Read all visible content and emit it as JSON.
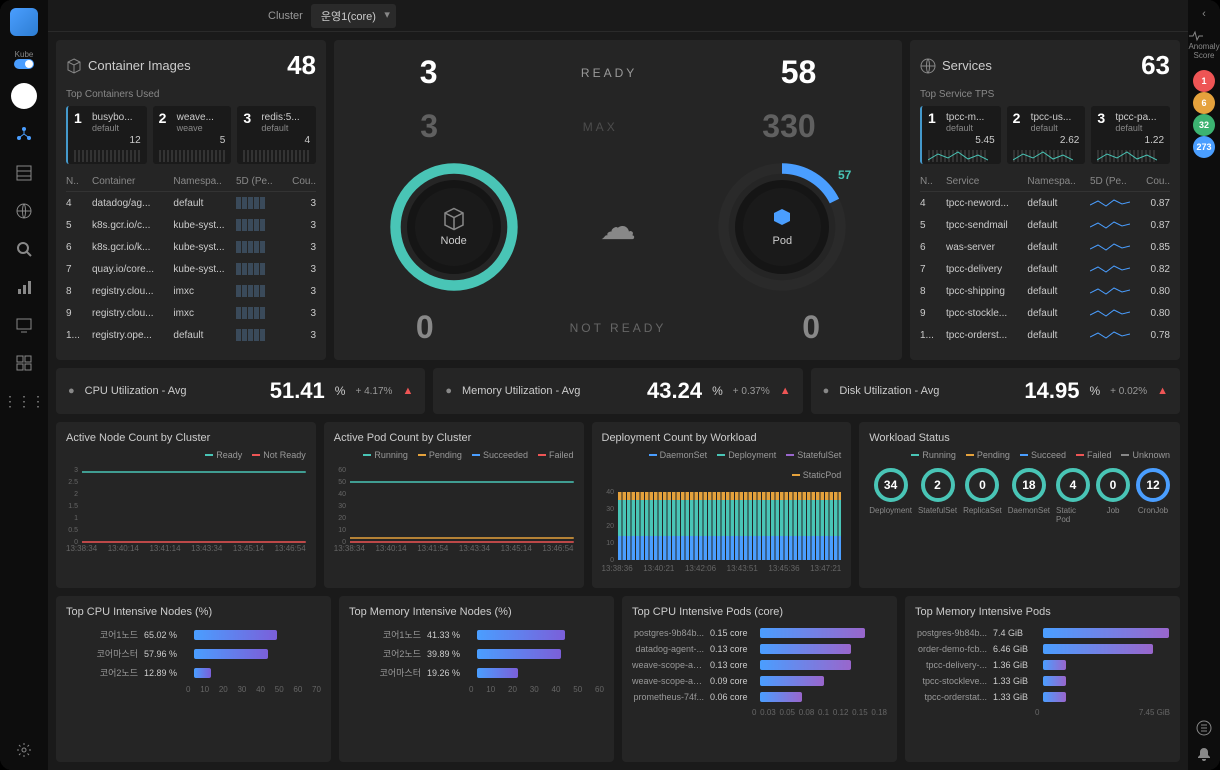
{
  "header": {
    "cluster_label": "Cluster",
    "cluster_value": "운영1(core)"
  },
  "sidebar": {
    "kube_label": "Kube"
  },
  "containers": {
    "title": "Container Images",
    "count": 48,
    "sub": "Top Containers Used",
    "top": [
      {
        "rank": 1,
        "name": "busybo...",
        "ns": "default",
        "val": 12
      },
      {
        "rank": 2,
        "name": "weave...",
        "ns": "weave",
        "val": 5
      },
      {
        "rank": 3,
        "name": "redis:5...",
        "ns": "default",
        "val": 4
      }
    ],
    "cols": [
      "N..",
      "Container",
      "Namespa..",
      "5D (Pe..",
      "Cou.."
    ],
    "rows": [
      {
        "n": 4,
        "name": "datadog/ag...",
        "ns": "default",
        "cnt": 3
      },
      {
        "n": 5,
        "name": "k8s.gcr.io/c...",
        "ns": "kube-syst...",
        "cnt": 3
      },
      {
        "n": 6,
        "name": "k8s.gcr.io/k...",
        "ns": "kube-syst...",
        "cnt": 3
      },
      {
        "n": 7,
        "name": "quay.io/core...",
        "ns": "kube-syst...",
        "cnt": 3
      },
      {
        "n": 8,
        "name": "registry.clou...",
        "ns": "imxc",
        "cnt": 3
      },
      {
        "n": 9,
        "name": "registry.clou...",
        "ns": "imxc",
        "cnt": 3
      },
      {
        "n": "1...",
        "name": "registry.ope...",
        "ns": "default",
        "cnt": 3
      }
    ]
  },
  "center": {
    "ready_label": "READY",
    "max_label": "MAX",
    "notready_label": "NOT READY",
    "node": {
      "ready": 3,
      "max": 3,
      "notready": 0,
      "label": "Node",
      "color": "#49c5b6"
    },
    "pod": {
      "ready": 58,
      "max": 330,
      "notready": 0,
      "label": "Pod",
      "color": "#4a9eff",
      "badge": 57
    }
  },
  "services": {
    "title": "Services",
    "count": 63,
    "sub": "Top Service TPS",
    "top": [
      {
        "rank": 1,
        "name": "tpcc-m...",
        "ns": "default",
        "val": "5.45"
      },
      {
        "rank": 2,
        "name": "tpcc-us...",
        "ns": "default",
        "val": "2.62"
      },
      {
        "rank": 3,
        "name": "tpcc-pa...",
        "ns": "default",
        "val": "1.22"
      }
    ],
    "cols": [
      "N..",
      "Service",
      "Namespa..",
      "5D (Pe..",
      "Cou.."
    ],
    "rows": [
      {
        "n": 4,
        "name": "tpcc-neword...",
        "ns": "default",
        "cnt": "0.87"
      },
      {
        "n": 5,
        "name": "tpcc-sendmail",
        "ns": "default",
        "cnt": "0.87"
      },
      {
        "n": 6,
        "name": "was-server",
        "ns": "default",
        "cnt": "0.85"
      },
      {
        "n": 7,
        "name": "tpcc-delivery",
        "ns": "default",
        "cnt": "0.82"
      },
      {
        "n": 8,
        "name": "tpcc-shipping",
        "ns": "default",
        "cnt": "0.80"
      },
      {
        "n": 9,
        "name": "tpcc-stockle...",
        "ns": "default",
        "cnt": "0.80"
      },
      {
        "n": "1...",
        "name": "tpcc-orderst...",
        "ns": "default",
        "cnt": "0.78"
      }
    ]
  },
  "util": [
    {
      "icon": "cpu",
      "title": "CPU Utilization - Avg",
      "val": "51.41",
      "delta": "+ 4.17%"
    },
    {
      "icon": "mem",
      "title": "Memory Utilization - Avg",
      "val": "43.24",
      "delta": "+ 0.37%"
    },
    {
      "icon": "disk",
      "title": "Disk Utilization - Avg",
      "val": "14.95",
      "delta": "+ 0.02%"
    }
  ],
  "charts": {
    "node_count": {
      "title": "Active Node Count by Cluster",
      "legend": [
        {
          "l": "Ready",
          "c": "#49c5b6"
        },
        {
          "l": "Not Ready",
          "c": "#e55"
        }
      ],
      "ymax": 3,
      "yticks": [
        "3",
        "2.5",
        "2",
        "1.5",
        "1",
        "0.5",
        "0"
      ],
      "xticks": [
        "13:38:34",
        "13:40:14",
        "13:41:14",
        "13:43:34",
        "13:45:14",
        "13:46:54"
      ],
      "ready": 3,
      "notready": 0
    },
    "pod_count": {
      "title": "Active Pod Count by Cluster",
      "legend": [
        {
          "l": "Running",
          "c": "#49c5b6"
        },
        {
          "l": "Pending",
          "c": "#e5a23c"
        },
        {
          "l": "Succeeded",
          "c": "#4a9eff"
        },
        {
          "l": "Failed",
          "c": "#e55"
        }
      ],
      "ymax": 60,
      "yticks": [
        "60",
        "50",
        "40",
        "30",
        "20",
        "10",
        "0"
      ],
      "xticks": [
        "13:38:34",
        "13:40:14",
        "13:41:54",
        "13:43:34",
        "13:45:14",
        "13:46:54"
      ],
      "running": 50,
      "other": 3
    },
    "deploy_count": {
      "title": "Deployment Count by Workload",
      "legend": [
        {
          "l": "DaemonSet",
          "c": "#4a9eff"
        },
        {
          "l": "Deployment",
          "c": "#49c5b6"
        },
        {
          "l": "StatefulSet",
          "c": "#9966cc"
        },
        {
          "l": "StaticPod",
          "c": "#e5a23c"
        }
      ],
      "ymax": 40,
      "yticks": [
        "40",
        "30",
        "20",
        "10",
        "0"
      ],
      "xticks": [
        "13:38:36",
        "13:40:21",
        "13:42:06",
        "13:43:51",
        "13:45:36",
        "13:47:21"
      ]
    },
    "workload": {
      "title": "Workload Status",
      "legend": [
        {
          "l": "Running",
          "c": "#49c5b6"
        },
        {
          "l": "Pending",
          "c": "#e5a23c"
        },
        {
          "l": "Succeed",
          "c": "#4a9eff"
        },
        {
          "l": "Failed",
          "c": "#e55"
        },
        {
          "l": "Unknown",
          "c": "#888"
        }
      ],
      "items": [
        {
          "label": "Deployment",
          "val": 34,
          "c": "#49c5b6"
        },
        {
          "label": "StatefulSet",
          "val": 2,
          "c": "#49c5b6"
        },
        {
          "label": "ReplicaSet",
          "val": 0,
          "c": "#49c5b6"
        },
        {
          "label": "DaemonSet",
          "val": 18,
          "c": "#49c5b6"
        },
        {
          "label": "Static Pod",
          "val": 4,
          "c": "#49c5b6"
        },
        {
          "label": "Job",
          "val": 0,
          "c": "#49c5b6"
        },
        {
          "label": "CronJob",
          "val": 12,
          "c": "#4a9eff"
        }
      ]
    },
    "cpu_nodes": {
      "title": "Top CPU Intensive Nodes (%)",
      "rows": [
        {
          "label": "코어1노드",
          "val": "65.02 %",
          "pct": 65,
          "c1": "#4a9eff",
          "c2": "#7b5fd9"
        },
        {
          "label": "코어마스터",
          "val": "57.96 %",
          "pct": 58,
          "c1": "#4a9eff",
          "c2": "#7b5fd9"
        },
        {
          "label": "코어2노드",
          "val": "12.89 %",
          "pct": 13,
          "c1": "#4a9eff",
          "c2": "#7b5fd9"
        }
      ],
      "xticks": [
        "0",
        "10",
        "20",
        "30",
        "40",
        "50",
        "60",
        "70"
      ]
    },
    "mem_nodes": {
      "title": "Top Memory Intensive Nodes (%)",
      "rows": [
        {
          "label": "코어1노드",
          "val": "41.33 %",
          "pct": 69,
          "c1": "#4a9eff",
          "c2": "#7b5fd9"
        },
        {
          "label": "코어2노드",
          "val": "39.89 %",
          "pct": 66,
          "c1": "#4a9eff",
          "c2": "#7b5fd9"
        },
        {
          "label": "코어마스터",
          "val": "19.26 %",
          "pct": 32,
          "c1": "#4a9eff",
          "c2": "#7b5fd9"
        }
      ],
      "xticks": [
        "0",
        "10",
        "20",
        "30",
        "40",
        "50",
        "60"
      ]
    },
    "cpu_pods": {
      "title": "Top CPU Intensive Pods (core)",
      "rows": [
        {
          "label": "postgres-9b84b...",
          "val": "0.15 core",
          "pct": 83,
          "c1": "#4a9eff",
          "c2": "#9966cc"
        },
        {
          "label": "datadog-agent-...",
          "val": "0.13 core",
          "pct": 72,
          "c1": "#4a9eff",
          "c2": "#9966cc"
        },
        {
          "label": "weave-scope-ag...",
          "val": "0.13 core",
          "pct": 72,
          "c1": "#4a9eff",
          "c2": "#9966cc"
        },
        {
          "label": "weave-scope-ag...",
          "val": "0.09 core",
          "pct": 50,
          "c1": "#4a9eff",
          "c2": "#9966cc"
        },
        {
          "label": "prometheus-74f...",
          "val": "0.06 core",
          "pct": 33,
          "c1": "#4a9eff",
          "c2": "#9966cc"
        }
      ],
      "xticks": [
        "0",
        "0.03",
        "0.05",
        "0.08",
        "0.1",
        "0.12",
        "0.15",
        "0.18"
      ]
    },
    "mem_pods": {
      "title": "Top Memory Intensive Pods",
      "rows": [
        {
          "label": "postgres-9b84b...",
          "val": "7.4 GiB",
          "pct": 99,
          "c1": "#4a9eff",
          "c2": "#9966cc"
        },
        {
          "label": "order-demo-fcb...",
          "val": "6.46 GiB",
          "pct": 87,
          "c1": "#4a9eff",
          "c2": "#9966cc"
        },
        {
          "label": "tpcc-delivery-...",
          "val": "1.36 GiB",
          "pct": 18,
          "c1": "#4a9eff",
          "c2": "#9966cc"
        },
        {
          "label": "tpcc-stockleve...",
          "val": "1.33 GiB",
          "pct": 18,
          "c1": "#4a9eff",
          "c2": "#9966cc"
        },
        {
          "label": "tpcc-orderstat...",
          "val": "1.33 GiB",
          "pct": 18,
          "c1": "#4a9eff",
          "c2": "#9966cc"
        }
      ],
      "xticks": [
        "0",
        "7.45 GiB"
      ]
    }
  },
  "rail": {
    "anomaly": "Anomaly Score",
    "badges": [
      {
        "v": 1,
        "c": "#e55"
      },
      {
        "v": 6,
        "c": "#e5a23c"
      },
      {
        "v": 32,
        "c": "#3cb371"
      },
      {
        "v": 273,
        "c": "#4a9eff"
      }
    ]
  }
}
